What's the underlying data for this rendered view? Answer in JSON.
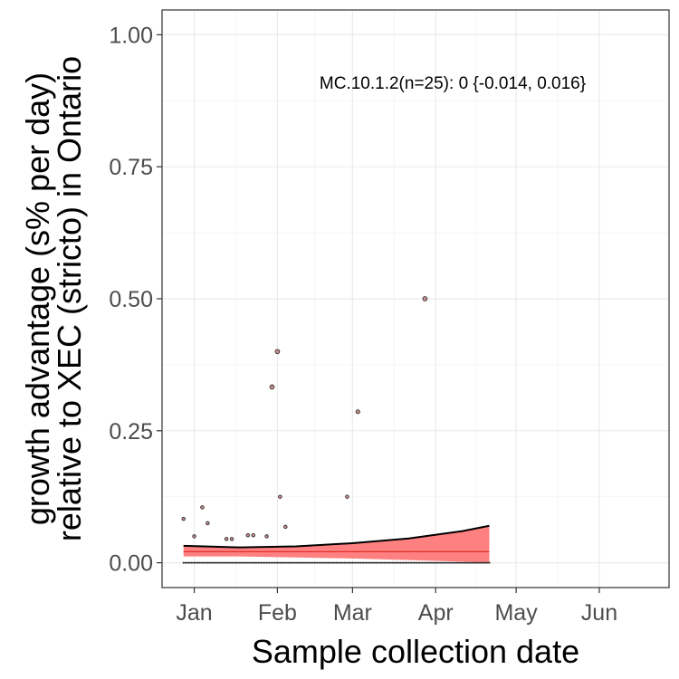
{
  "chart_data": {
    "type": "scatter",
    "title": "",
    "xlabel": "Sample collection date",
    "ylabel_lines": [
      "growth advantage (s% per day)",
      "relative to XEC (stricto) in Ontario"
    ],
    "annotation": "MC.10.1.2(n=25): 0 {-0.014, 0.016}",
    "xlim": [
      "2024-12-20",
      "2025-06-27"
    ],
    "ylim": [
      -0.047,
      1.047
    ],
    "x_ticks": [
      {
        "label": "Jan",
        "date": "2025-01-01"
      },
      {
        "label": "Feb",
        "date": "2025-02-01"
      },
      {
        "label": "Mar",
        "date": "2025-03-01"
      },
      {
        "label": "Apr",
        "date": "2025-04-01"
      },
      {
        "label": "May",
        "date": "2025-05-01"
      },
      {
        "label": "Jun",
        "date": "2025-06-01"
      }
    ],
    "y_ticks": [
      {
        "label": "0.00",
        "value": 0.0
      },
      {
        "label": "0.25",
        "value": 0.25
      },
      {
        "label": "0.50",
        "value": 0.5
      },
      {
        "label": "0.75",
        "value": 0.75
      },
      {
        "label": "1.00",
        "value": 1.0
      }
    ],
    "grid": true,
    "colors": {
      "ribbon": "#ff8080",
      "fit_line": "#e03030",
      "upper_line": "#000000",
      "point_fill": "#c98a8a",
      "point_stroke": "#333333"
    },
    "points": [
      {
        "x": "2024-12-28",
        "y": 0.083
      },
      {
        "x": "2025-01-01",
        "y": 0.05
      },
      {
        "x": "2025-01-04",
        "y": 0.105
      },
      {
        "x": "2025-01-06",
        "y": 0.075
      },
      {
        "x": "2025-01-13",
        "y": 0.045
      },
      {
        "x": "2025-01-15",
        "y": 0.045
      },
      {
        "x": "2025-01-21",
        "y": 0.052
      },
      {
        "x": "2025-01-23",
        "y": 0.052
      },
      {
        "x": "2025-01-28",
        "y": 0.05
      },
      {
        "x": "2025-01-30",
        "y": 0.333
      },
      {
        "x": "2025-02-01",
        "y": 0.4
      },
      {
        "x": "2025-02-02",
        "y": 0.125
      },
      {
        "x": "2025-02-04",
        "y": 0.068
      },
      {
        "x": "2025-02-27",
        "y": 0.125
      },
      {
        "x": "2025-03-03",
        "y": 0.286
      },
      {
        "x": "2025-03-28",
        "y": 0.5
      }
    ],
    "zero_points_range": [
      "2024-12-28",
      "2025-04-21"
    ],
    "fit": {
      "x": [
        "2024-12-28",
        "2025-01-18",
        "2025-02-08",
        "2025-03-01",
        "2025-03-22",
        "2025-04-11",
        "2025-04-21"
      ],
      "fit": [
        0.021,
        0.021,
        0.021,
        0.021,
        0.021,
        0.021,
        0.021
      ],
      "upper": [
        0.032,
        0.029,
        0.031,
        0.037,
        0.046,
        0.06,
        0.07
      ],
      "lower": [
        0.012,
        0.012,
        0.01,
        0.008,
        0.005,
        0.002,
        0.0
      ]
    }
  }
}
